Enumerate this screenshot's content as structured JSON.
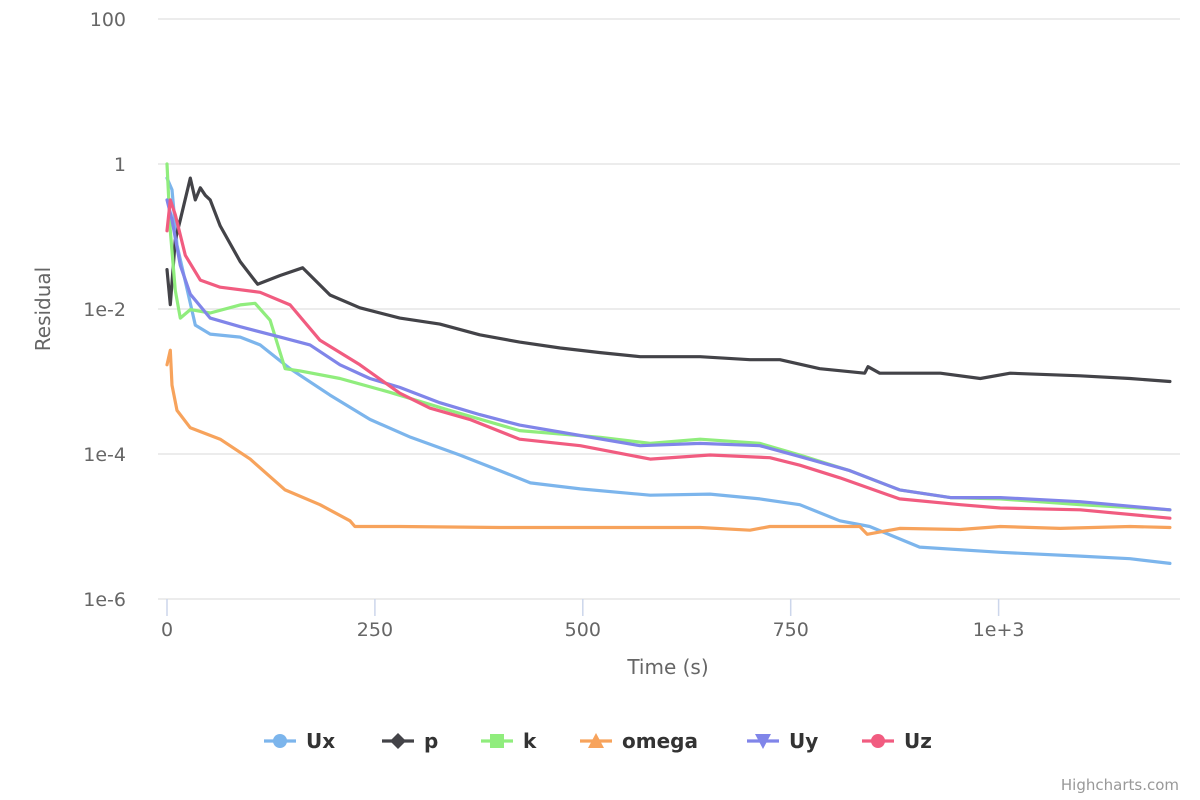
{
  "chart_data": {
    "type": "line",
    "title": "",
    "xlabel": "Time (s)",
    "ylabel": "Residual",
    "xlim": [
      0,
      1210
    ],
    "ylim": [
      1e-06,
      100
    ],
    "yscale": "log",
    "grid": true,
    "legend_position": "bottom-center",
    "x_ticks": [
      0,
      250,
      500,
      750,
      1000
    ],
    "x_tick_labels": [
      "0",
      "250",
      "500",
      "750",
      "1e+3"
    ],
    "y_ticks": [
      100,
      1,
      0.01,
      0.0001,
      1e-06
    ],
    "y_tick_labels": [
      "100",
      "1",
      "1e-2",
      "1e-4",
      "1e-6"
    ],
    "credits": "Highcharts.com",
    "series": [
      {
        "name": "Ux",
        "color": "#7cb5ec",
        "marker": "circle",
        "x": [
          0,
          6,
          12,
          22,
          34,
          52,
          88,
          112,
          148,
          196,
          244,
          293,
          352,
          400,
          437,
          497,
          581,
          653,
          713,
          761,
          809,
          845,
          905,
          1002,
          1098,
          1158,
          1206
        ],
        "y": [
          0.64,
          0.44,
          0.076,
          0.024,
          0.006,
          0.0045,
          0.0041,
          0.0032,
          0.0015,
          0.00065,
          0.0003,
          0.00017,
          9.7e-05,
          5.9e-05,
          4e-05,
          3.3e-05,
          2.7e-05,
          2.8e-05,
          2.4e-05,
          2e-05,
          1.2e-05,
          1e-05,
          5.2e-06,
          4.4e-06,
          3.9e-06,
          3.6e-06,
          3.1e-06
        ]
      },
      {
        "name": "p",
        "color": "#434348",
        "marker": "diamond",
        "x": [
          0,
          4,
          10,
          16,
          28,
          34,
          40,
          46,
          52,
          64,
          88,
          109,
          136,
          163,
          196,
          232,
          280,
          328,
          376,
          424,
          473,
          521,
          569,
          641,
          701,
          737,
          785,
          839,
          843,
          857,
          930,
          978,
          1014,
          1098,
          1158,
          1206
        ],
        "y": [
          0.035,
          0.0115,
          0.09,
          0.17,
          0.64,
          0.32,
          0.47,
          0.37,
          0.32,
          0.14,
          0.045,
          0.022,
          0.029,
          0.037,
          0.0156,
          0.0104,
          0.0075,
          0.0062,
          0.0044,
          0.0035,
          0.0029,
          0.0025,
          0.0022,
          0.0022,
          0.002,
          0.002,
          0.0015,
          0.0013,
          0.0016,
          0.0013,
          0.0013,
          0.0011,
          0.0013,
          0.0012,
          0.0011,
          0.001
        ]
      },
      {
        "name": "k",
        "color": "#90ed7d",
        "marker": "square",
        "x": [
          0,
          4,
          10,
          16,
          28,
          52,
          88,
          106,
          124,
          142,
          160,
          208,
          268,
          340,
          424,
          521,
          581,
          641,
          713,
          761,
          821,
          881,
          942,
          1002,
          1098,
          1206
        ],
        "y": [
          1.0,
          0.12,
          0.018,
          0.0075,
          0.0098,
          0.0088,
          0.0114,
          0.012,
          0.007,
          0.0015,
          0.0014,
          0.0011,
          0.00071,
          0.0004,
          0.00021,
          0.00017,
          0.00014,
          0.00016,
          0.00014,
          9.7e-05,
          5.9e-05,
          3.2e-05,
          2.5e-05,
          2.4e-05,
          2e-05,
          1.7e-05
        ]
      },
      {
        "name": "omega",
        "color": "#f7a35c",
        "marker": "triangle",
        "x": [
          0,
          4,
          6,
          12,
          28,
          64,
          100,
          142,
          184,
          220,
          226,
          280,
          400,
          521,
          641,
          701,
          725,
          833,
          842,
          881,
          954,
          1002,
          1074,
          1158,
          1206
        ],
        "y": [
          0.0017,
          0.0027,
          0.00089,
          0.0004,
          0.00023,
          0.00016,
          8.5e-05,
          3.2e-05,
          2e-05,
          1.2e-05,
          1e-05,
          1e-05,
          9.7e-06,
          9.7e-06,
          9.7e-06,
          8.9e-06,
          1e-05,
          1e-05,
          7.8e-06,
          9.4e-06,
          9.1e-06,
          1e-05,
          9.4e-06,
          1e-05,
          9.7e-06
        ]
      },
      {
        "name": "Uy",
        "color": "#8085e9",
        "marker": "triangle-down",
        "x": [
          0,
          6,
          16,
          28,
          52,
          88,
          136,
          172,
          208,
          244,
          280,
          328,
          376,
          424,
          497,
          569,
          641,
          713,
          761,
          821,
          881,
          942,
          1002,
          1098,
          1206
        ],
        "y": [
          0.32,
          0.17,
          0.04,
          0.016,
          0.0075,
          0.0057,
          0.0041,
          0.0032,
          0.0017,
          0.0011,
          0.00083,
          0.00051,
          0.00035,
          0.00025,
          0.00018,
          0.00013,
          0.00014,
          0.00013,
          9.2e-05,
          5.9e-05,
          3.2e-05,
          2.5e-05,
          2.5e-05,
          2.2e-05,
          1.7e-05
        ]
      },
      {
        "name": "Uz",
        "color": "#f15c80",
        "marker": "circle",
        "x": [
          0,
          4,
          10,
          22,
          40,
          64,
          112,
          148,
          184,
          232,
          280,
          316,
          364,
          424,
          497,
          581,
          653,
          725,
          761,
          809,
          881,
          954,
          1002,
          1098,
          1206
        ],
        "y": [
          0.12,
          0.32,
          0.2,
          0.055,
          0.025,
          0.02,
          0.017,
          0.0114,
          0.0037,
          0.0017,
          0.00069,
          0.00043,
          0.0003,
          0.00016,
          0.00013,
          8.5e-05,
          9.7e-05,
          8.9e-05,
          7e-05,
          4.7e-05,
          2.4e-05,
          2e-05,
          1.8e-05,
          1.7e-05,
          1.3e-05
        ]
      }
    ]
  }
}
